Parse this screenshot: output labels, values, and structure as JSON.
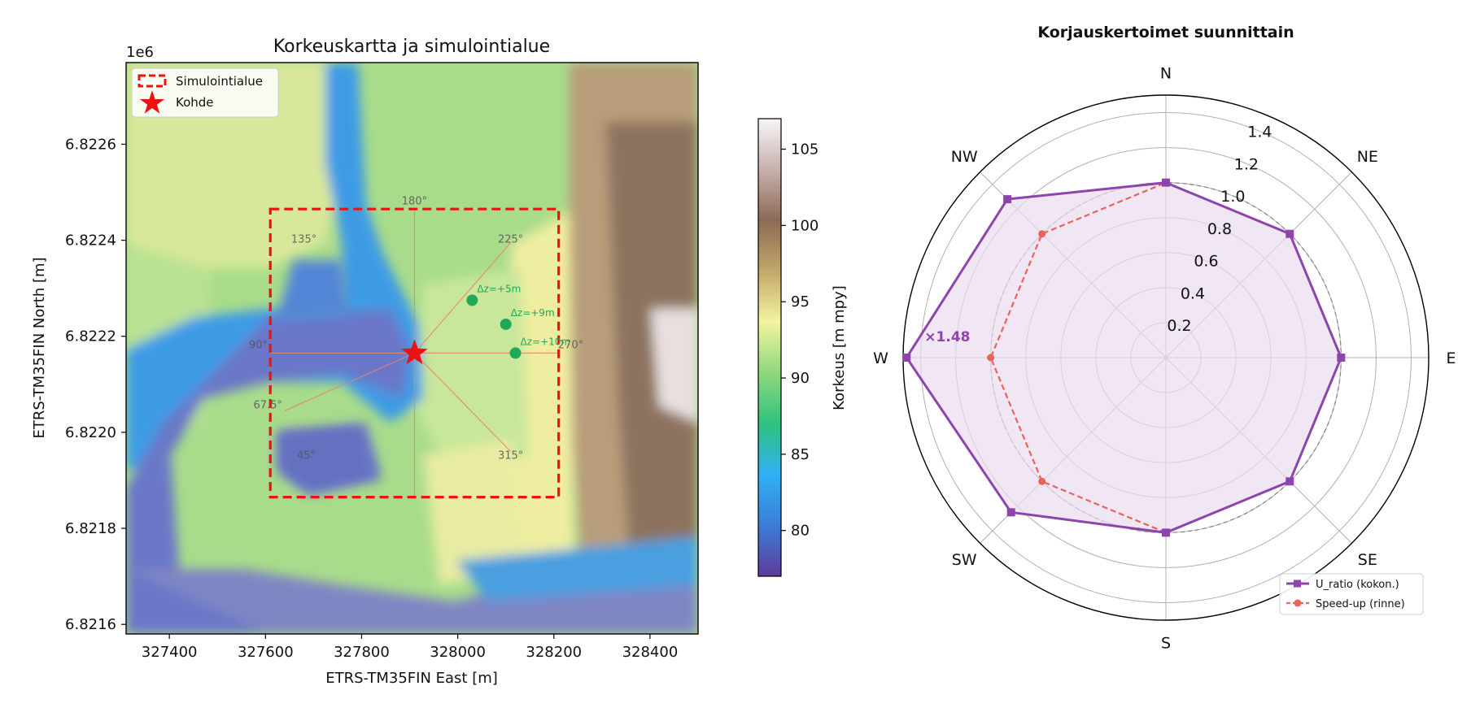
{
  "chart_data": [
    {
      "type": "heatmap",
      "title": "Korkeuskartta ja simulointialue",
      "xlabel": "ETRS-TM35FIN East [m]",
      "ylabel": "ETRS-TM35FIN North [m]",
      "y_offset_label": "1e6",
      "xlim": [
        327310,
        328500
      ],
      "ylim": [
        6821580,
        6822770
      ],
      "x_ticks": [
        {
          "value": 327400,
          "label": "327400"
        },
        {
          "value": 327600,
          "label": "327600"
        },
        {
          "value": 327800,
          "label": "327800"
        },
        {
          "value": 328000,
          "label": "328000"
        },
        {
          "value": 328200,
          "label": "328200"
        },
        {
          "value": 328400,
          "label": "328400"
        }
      ],
      "y_ticks": [
        {
          "value": 6821600,
          "label": "6.8216"
        },
        {
          "value": 6821800,
          "label": "6.8218"
        },
        {
          "value": 6822000,
          "label": "6.8220"
        },
        {
          "value": 6822200,
          "label": "6.8222"
        },
        {
          "value": 6822400,
          "label": "6.8224"
        },
        {
          "value": 6822600,
          "label": "6.8226"
        }
      ],
      "colorbar": {
        "label": "Korkeus [m mpy]",
        "range": [
          77,
          107
        ],
        "ticks": [
          {
            "value": 80,
            "label": "80"
          },
          {
            "value": 85,
            "label": "85"
          },
          {
            "value": 90,
            "label": "90"
          },
          {
            "value": 95,
            "label": "95"
          },
          {
            "value": 100,
            "label": "100"
          },
          {
            "value": 105,
            "label": "105"
          }
        ],
        "colors": [
          "#5e3c99",
          "#3b7dd8",
          "#2fb1f5",
          "#2ec27e",
          "#8fd87c",
          "#f4f3a0",
          "#c2a86a",
          "#8c6a55",
          "#c8b0ae",
          "#f8f6f6"
        ]
      },
      "simulation_area": {
        "x0": 327610,
        "x1": 328210,
        "y0": 6821865,
        "y1": 6822465,
        "color": "#ee1111"
      },
      "target": {
        "x": 327910,
        "y": 6822165,
        "color": "#ee1111"
      },
      "legend": {
        "position": "upper-left",
        "entries": [
          "Simulointialue",
          "Kohde"
        ]
      },
      "sector_labels": [
        {
          "label": "180°",
          "x": 327910,
          "y": 6822475
        },
        {
          "label": "135°",
          "x": 327680,
          "y": 6822395
        },
        {
          "label": "225°",
          "x": 328110,
          "y": 6822395
        },
        {
          "label": "90°",
          "x": 327585,
          "y": 6822175
        },
        {
          "label": "270°",
          "x": 328235,
          "y": 6822175
        },
        {
          "label": "67.5°",
          "x": 327605,
          "y": 6822050
        },
        {
          "label": "45°",
          "x": 327685,
          "y": 6821945
        },
        {
          "label": "315°",
          "x": 328110,
          "y": 6821945
        }
      ],
      "sector_lines": [
        {
          "x2": 327910,
          "y2": 6822465
        },
        {
          "x2": 328110,
          "y2": 6822395
        },
        {
          "x2": 328210,
          "y2": 6822165
        },
        {
          "x2": 328110,
          "y2": 6821960
        },
        {
          "x2": 327910,
          "y2": 6821865
        },
        {
          "x2": 327610,
          "y2": 6822165
        },
        {
          "x2": 327640,
          "y2": 6822045
        }
      ],
      "points": [
        {
          "label": "Δz=+5m",
          "x": 328030,
          "y": 6822275
        },
        {
          "label": "Δz=+9m",
          "x": 328100,
          "y": 6822225
        },
        {
          "label": "Δz=+10m",
          "x": 328120,
          "y": 6822165
        }
      ],
      "point_color": "#22a85a"
    },
    {
      "type": "line",
      "polar": true,
      "title": "Korjauskertoimet suunnittain",
      "categories": [
        "N",
        "NE",
        "E",
        "SE",
        "S",
        "SW",
        "W",
        "NW"
      ],
      "radial_ticks": [
        {
          "value": 0.2,
          "label": "0.2"
        },
        {
          "value": 0.4,
          "label": "0.4"
        },
        {
          "value": 0.6,
          "label": "0.6"
        },
        {
          "value": 0.8,
          "label": "0.8"
        },
        {
          "value": 1.0,
          "label": "1.0"
        },
        {
          "value": 1.2,
          "label": "1.2"
        },
        {
          "value": 1.4,
          "label": "1.4"
        }
      ],
      "rlim": [
        0,
        1.5
      ],
      "reference_value": 1.0,
      "series": [
        {
          "name": "U_ratio (kokon.)",
          "values": [
            1.0,
            1.0,
            1.0,
            1.0,
            1.0,
            1.25,
            1.48,
            1.28
          ],
          "color": "#8e44ad",
          "marker": "square",
          "style": "solid",
          "fill": "#e9dcf0"
        },
        {
          "name": "Speed-up (rinne)",
          "values": [
            1.0,
            1.0,
            1.0,
            1.0,
            1.0,
            1.0,
            1.0,
            1.0
          ],
          "color": "#e8645a",
          "marker": "circle",
          "style": "dashed"
        }
      ],
      "annotation": {
        "label": "×1.48",
        "category": "W",
        "color": "#8e44ad"
      },
      "legend": {
        "position": "lower-right"
      },
      "grid": true
    }
  ]
}
